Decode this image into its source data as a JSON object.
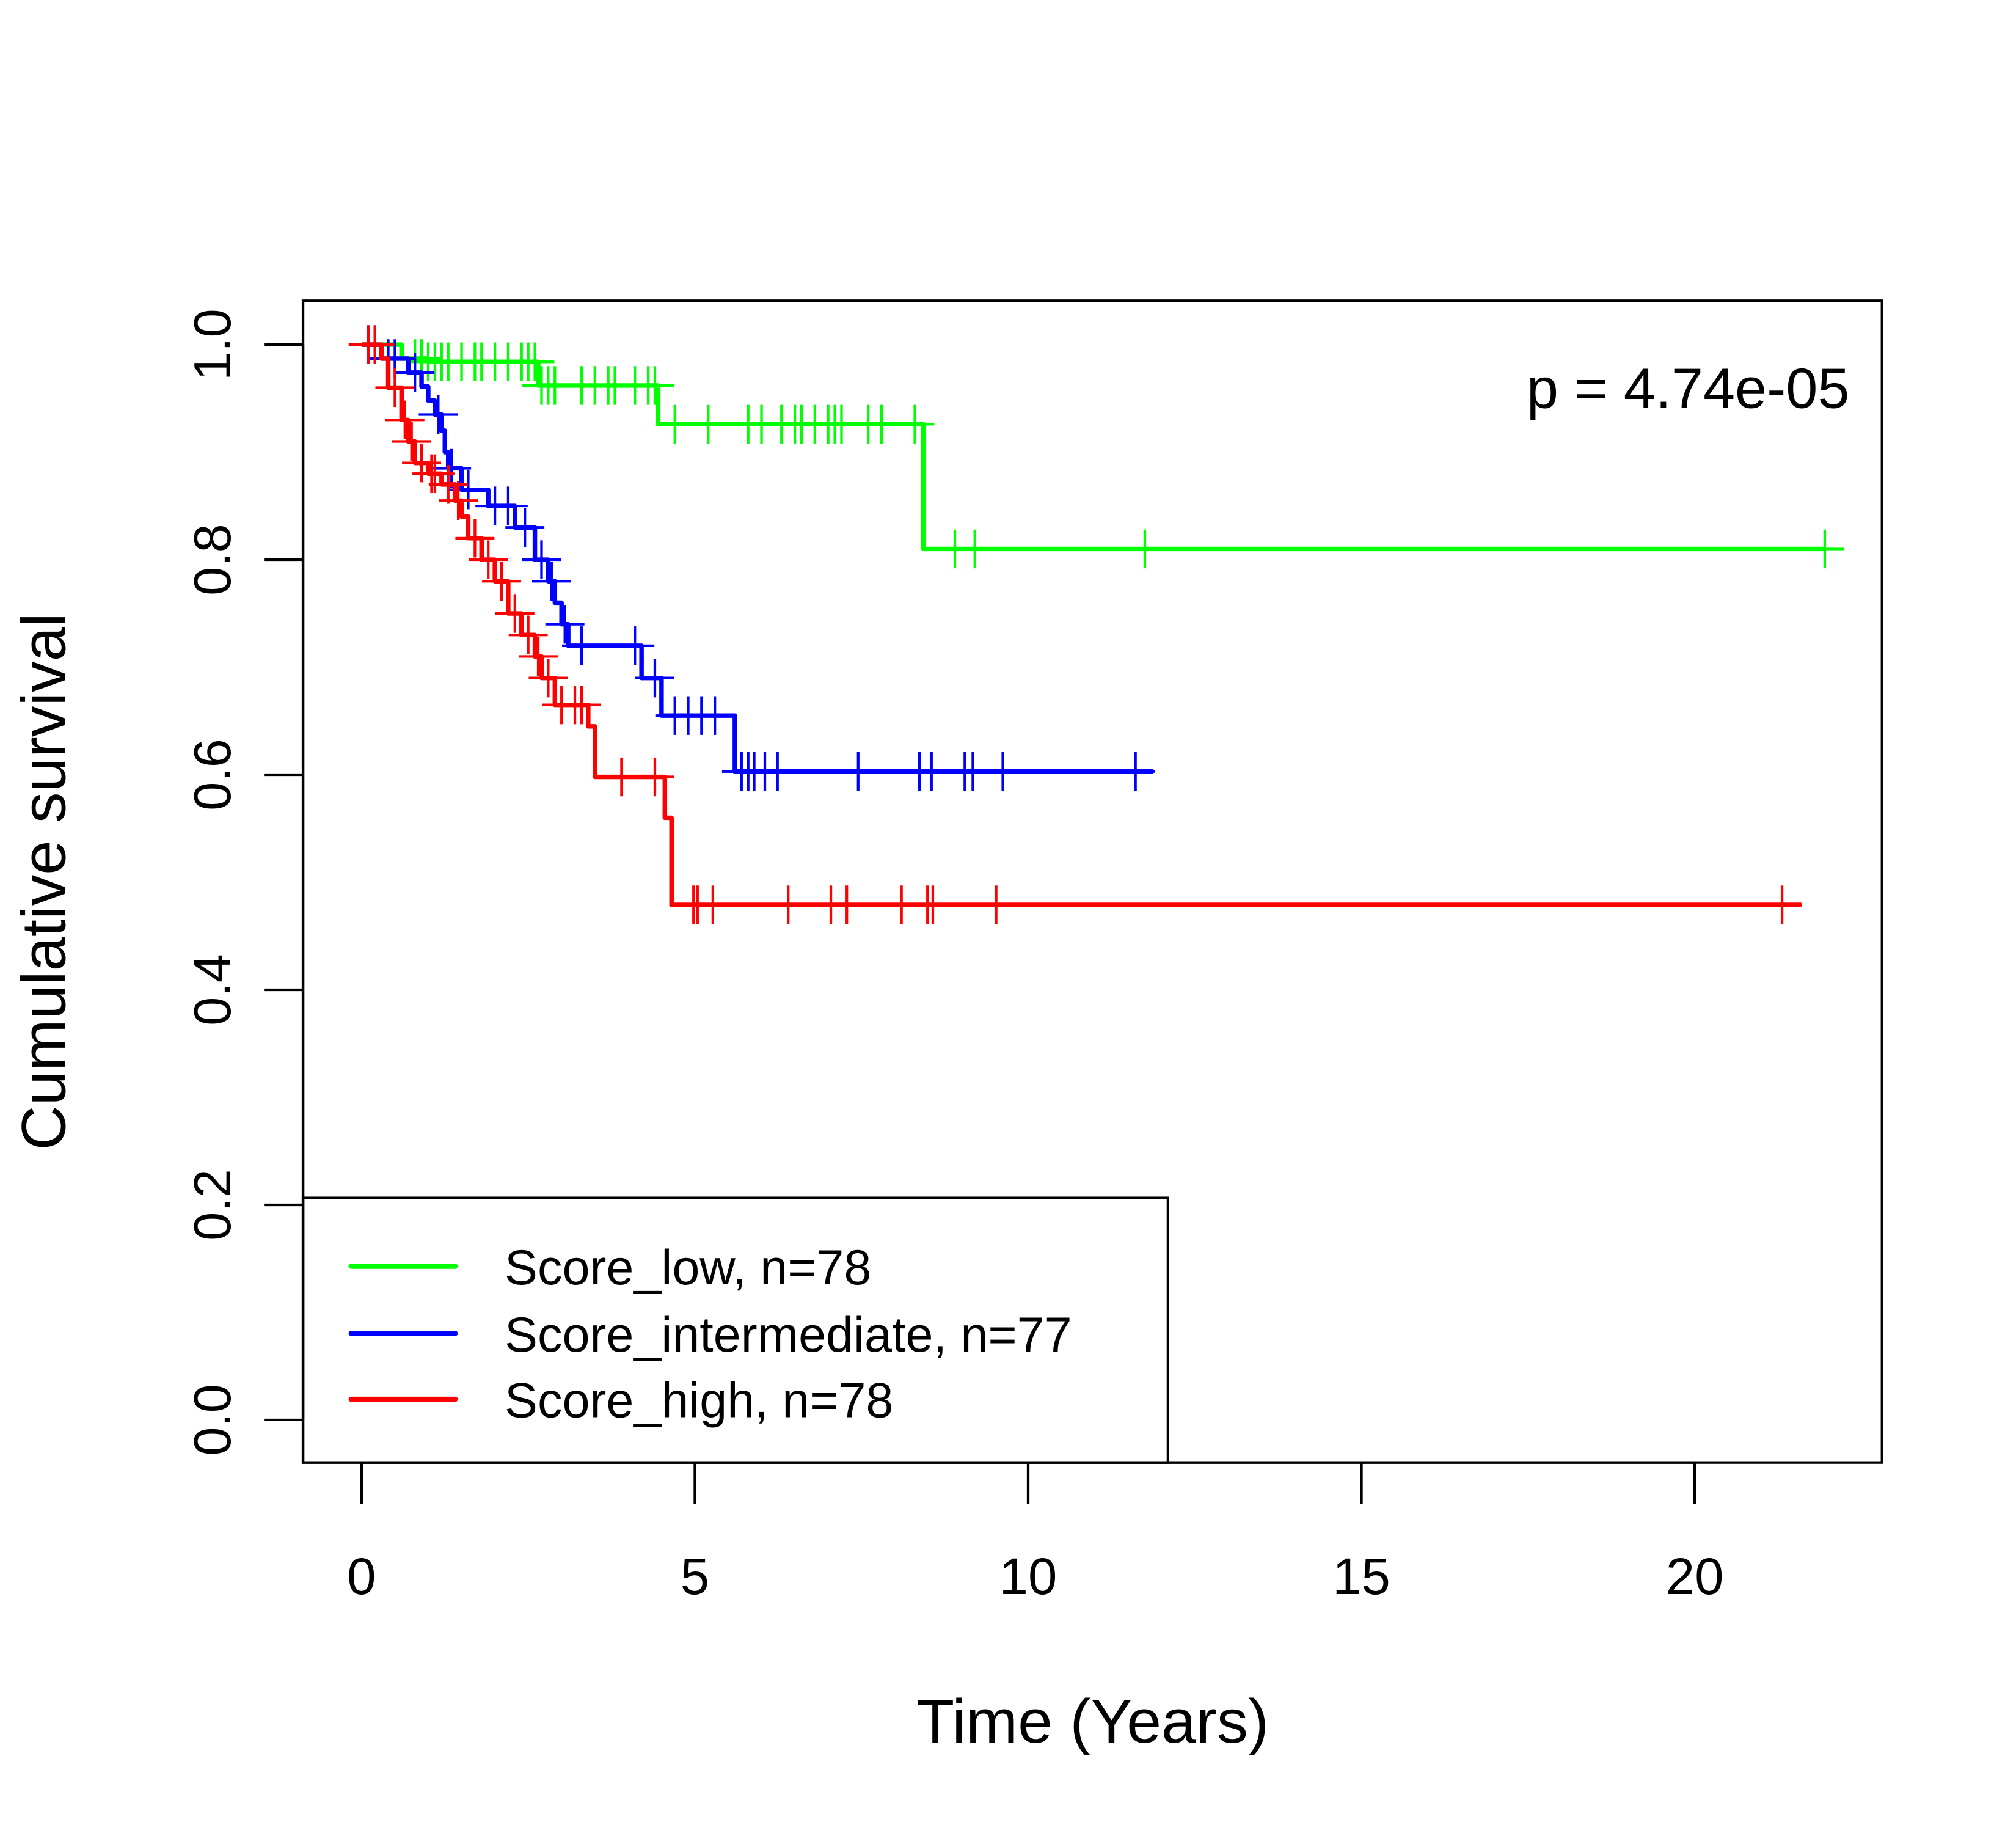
{
  "chart_data": {
    "type": "line",
    "subtype": "kaplan-meier step",
    "title": "",
    "xlabel": "Time (Years)",
    "ylabel": "Cumulative survival",
    "xlim": [
      0,
      22
    ],
    "ylim": [
      0,
      1
    ],
    "xticks": [
      0,
      5,
      10,
      15,
      20
    ],
    "yticks": [
      0.0,
      0.2,
      0.4,
      0.6,
      0.8,
      1.0
    ],
    "xtick_labels": [
      "0",
      "5",
      "10",
      "15",
      "20"
    ],
    "ytick_labels": [
      "0.0",
      "0.2",
      "0.4",
      "0.6",
      "0.8",
      "1.0"
    ],
    "grid": false,
    "annotation": "p = 4.74e-05",
    "annotation_position": "top-right",
    "legend_position": "bottom-left",
    "series": [
      {
        "name": "Score_low, n=78",
        "color": "#00ff00",
        "steps": [
          [
            0,
            1.0
          ],
          [
            0.6,
            0.987
          ],
          [
            1.0,
            0.984
          ],
          [
            2.65,
            0.962
          ],
          [
            4.45,
            0.926
          ],
          [
            8.43,
            0.81
          ]
        ],
        "end_time": 21.95,
        "censor_times": [
          0.8,
          0.9,
          1.0,
          1.1,
          1.2,
          1.3,
          1.5,
          1.7,
          1.8,
          2.0,
          2.2,
          2.4,
          2.5,
          2.6,
          2.7,
          2.8,
          2.9,
          3.3,
          3.5,
          3.7,
          3.8,
          4.1,
          4.3,
          4.4,
          4.7,
          5.2,
          5.8,
          6.0,
          6.3,
          6.5,
          6.6,
          6.8,
          7.0,
          7.1,
          7.2,
          7.6,
          7.8,
          8.3,
          8.9,
          9.2,
          11.75,
          21.95
        ],
        "censor_levels_hint": "marks drawn on the curve at each censor time"
      },
      {
        "name": "Score_intermediate, n=77",
        "color": "#0000ff",
        "steps": [
          [
            0,
            1.0
          ],
          [
            0.3,
            0.987
          ],
          [
            0.7,
            0.974
          ],
          [
            0.9,
            0.961
          ],
          [
            1.0,
            0.948
          ],
          [
            1.1,
            0.935
          ],
          [
            1.2,
            0.92
          ],
          [
            1.25,
            0.9
          ],
          [
            1.3,
            0.885
          ],
          [
            1.5,
            0.865
          ],
          [
            1.9,
            0.85
          ],
          [
            2.3,
            0.83
          ],
          [
            2.6,
            0.8
          ],
          [
            2.8,
            0.78
          ],
          [
            2.9,
            0.76
          ],
          [
            3.0,
            0.74
          ],
          [
            3.1,
            0.72
          ],
          [
            4.2,
            0.69
          ],
          [
            4.5,
            0.655
          ],
          [
            5.6,
            0.603
          ]
        ],
        "end_time": 11.88,
        "censor_times": [
          0.1,
          0.2,
          0.4,
          0.5,
          0.8,
          1.15,
          1.35,
          1.6,
          2.0,
          2.2,
          2.45,
          2.7,
          2.85,
          3.05,
          3.3,
          4.1,
          4.4,
          4.7,
          4.9,
          5.1,
          5.3,
          5.7,
          5.8,
          5.89,
          6.05,
          6.24,
          7.45,
          8.37,
          8.55,
          9.05,
          9.17,
          9.62,
          11.61
        ]
      },
      {
        "name": "Score_high, n=78",
        "color": "#ff0000",
        "steps": [
          [
            0,
            1.0
          ],
          [
            0.3,
            0.987
          ],
          [
            0.4,
            0.96
          ],
          [
            0.6,
            0.93
          ],
          [
            0.7,
            0.91
          ],
          [
            0.8,
            0.89
          ],
          [
            1.0,
            0.88
          ],
          [
            1.2,
            0.87
          ],
          [
            1.4,
            0.855
          ],
          [
            1.5,
            0.84
          ],
          [
            1.6,
            0.82
          ],
          [
            1.8,
            0.8
          ],
          [
            2.0,
            0.78
          ],
          [
            2.2,
            0.75
          ],
          [
            2.4,
            0.73
          ],
          [
            2.6,
            0.71
          ],
          [
            2.7,
            0.69
          ],
          [
            2.9,
            0.665
          ],
          [
            3.4,
            0.645
          ],
          [
            3.5,
            0.598
          ],
          [
            4.55,
            0.56
          ],
          [
            4.65,
            0.479
          ]
        ],
        "end_time": 21.6,
        "censor_times": [
          0.1,
          0.2,
          0.5,
          0.65,
          0.75,
          0.9,
          1.05,
          1.1,
          1.3,
          1.45,
          1.7,
          1.9,
          2.1,
          2.3,
          2.5,
          2.65,
          2.8,
          3.0,
          3.2,
          3.3,
          3.9,
          4.4,
          4.98,
          5.04,
          5.27,
          6.4,
          7.04,
          7.28,
          8.1,
          8.49,
          8.57,
          9.52,
          21.31
        ]
      }
    ],
    "legend": [
      {
        "label": "Score_low, n=78",
        "color": "#00ff00"
      },
      {
        "label": "Score_intermediate, n=77",
        "color": "#0000ff"
      },
      {
        "label": "Score_high, n=78",
        "color": "#ff0000"
      }
    ]
  }
}
